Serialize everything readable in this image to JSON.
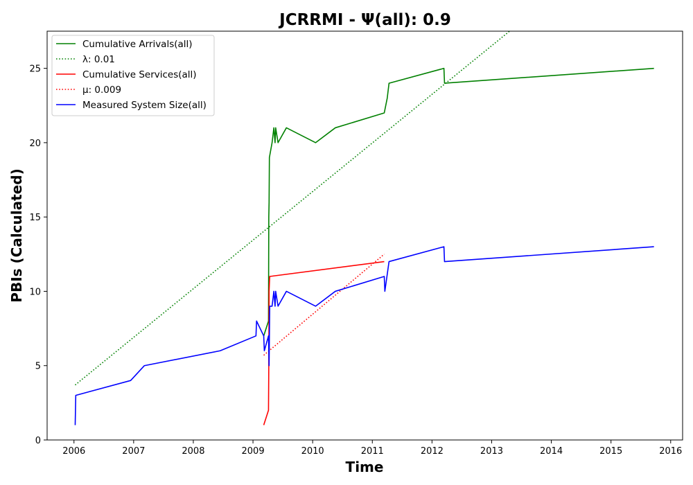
{
  "chart_data": {
    "type": "line",
    "title": "JCRRMI -  Ψ(all): 0.9",
    "xlabel": "Time",
    "ylabel": "PBIs (Calculated)",
    "xlim": [
      2005.55,
      2016.2
    ],
    "ylim": [
      0,
      27.5
    ],
    "x_ticks": [
      2006,
      2007,
      2008,
      2009,
      2010,
      2011,
      2012,
      2013,
      2014,
      2015,
      2016
    ],
    "y_ticks": [
      0,
      5,
      10,
      15,
      20,
      25
    ],
    "grid": false,
    "legend_position": "upper-left",
    "series": [
      {
        "name": "Cumulative Arrivals(all)",
        "color": "#008000",
        "style": "solid",
        "points": [
          [
            2009.18,
            7
          ],
          [
            2009.26,
            8
          ],
          [
            2009.265,
            15
          ],
          [
            2009.27,
            16
          ],
          [
            2009.275,
            19
          ],
          [
            2009.32,
            20
          ],
          [
            2009.35,
            21
          ],
          [
            2009.37,
            20
          ],
          [
            2009.38,
            21
          ],
          [
            2009.42,
            20
          ],
          [
            2009.56,
            21
          ],
          [
            2010.05,
            20
          ],
          [
            2010.38,
            21
          ],
          [
            2011.2,
            22
          ],
          [
            2011.25,
            23
          ],
          [
            2011.28,
            24
          ],
          [
            2012.2,
            25
          ],
          [
            2012.21,
            24
          ],
          [
            2015.72,
            25
          ]
        ]
      },
      {
        "name": "λ: 0.01",
        "color": "#008000",
        "style": "dotted",
        "points": [
          [
            2006.02,
            3.7
          ],
          [
            2013.3,
            27.5
          ]
        ]
      },
      {
        "name": "Cumulative Services(all)",
        "color": "#ff0000",
        "style": "solid",
        "points": [
          [
            2009.18,
            1
          ],
          [
            2009.26,
            2
          ],
          [
            2009.265,
            5
          ],
          [
            2009.27,
            10
          ],
          [
            2009.28,
            11
          ],
          [
            2011.2,
            12
          ]
        ]
      },
      {
        "name": "μ: 0.009",
        "color": "#ff0000",
        "style": "dotted",
        "points": [
          [
            2009.18,
            5.7
          ],
          [
            2011.2,
            12.5
          ]
        ]
      },
      {
        "name": "Measured System Size(all)",
        "color": "#0000ff",
        "style": "solid",
        "points": [
          [
            2006.02,
            1
          ],
          [
            2006.03,
            3
          ],
          [
            2006.95,
            4
          ],
          [
            2007.18,
            5
          ],
          [
            2008.45,
            6
          ],
          [
            2009.05,
            7
          ],
          [
            2009.06,
            8
          ],
          [
            2009.18,
            7
          ],
          [
            2009.19,
            6
          ],
          [
            2009.26,
            7
          ],
          [
            2009.27,
            5
          ],
          [
            2009.28,
            9
          ],
          [
            2009.32,
            9
          ],
          [
            2009.35,
            10
          ],
          [
            2009.37,
            9
          ],
          [
            2009.38,
            10
          ],
          [
            2009.42,
            9
          ],
          [
            2009.56,
            10
          ],
          [
            2010.05,
            9
          ],
          [
            2010.38,
            10
          ],
          [
            2011.2,
            11
          ],
          [
            2011.21,
            10
          ],
          [
            2011.28,
            12
          ],
          [
            2012.2,
            13
          ],
          [
            2012.21,
            12
          ],
          [
            2015.72,
            13
          ]
        ]
      }
    ]
  }
}
